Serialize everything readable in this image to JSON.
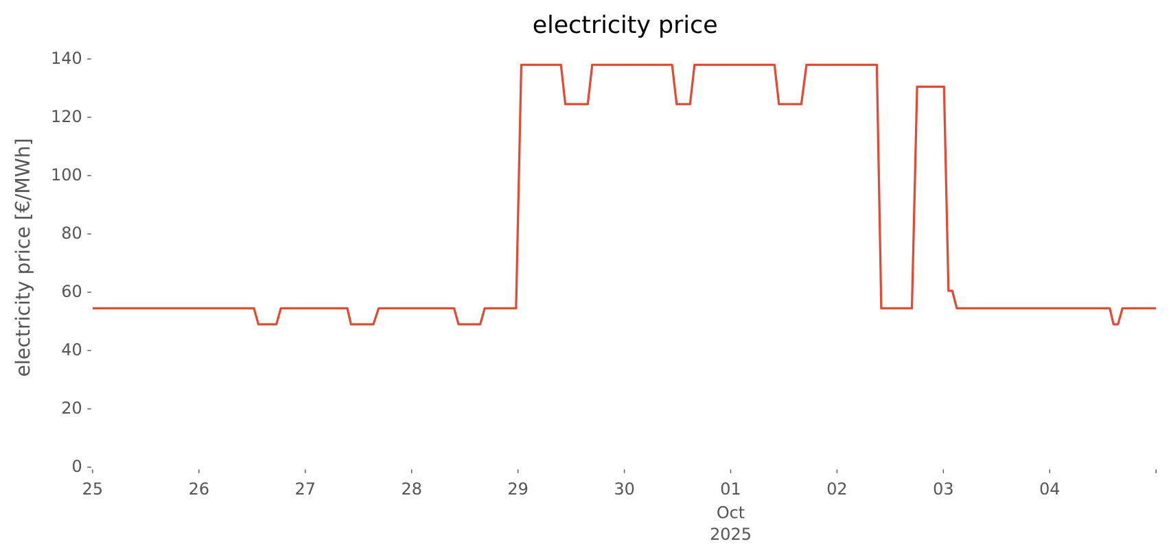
{
  "chart_data": {
    "type": "line",
    "title": "electricity price",
    "ylabel": "electricity price [€/MWh]",
    "x": [
      0,
      1.517,
      1.559,
      1.728,
      1.77,
      2.395,
      2.43,
      2.64,
      2.69,
      3.399,
      3.441,
      3.645,
      3.687,
      3.982,
      4.031,
      4.404,
      4.445,
      4.656,
      4.698,
      5.449,
      5.492,
      5.618,
      5.66,
      6.412,
      6.454,
      6.664,
      6.713,
      7.374,
      7.416,
      7.704,
      7.753,
      8.006,
      8.048,
      8.084,
      8.126,
      9.565,
      9.6,
      9.642,
      9.684,
      10
    ],
    "series": [
      {
        "name": "electricity price",
        "color": "#E24A33",
        "values": [
          54.5,
          54.5,
          49,
          49,
          54.5,
          54.5,
          49,
          49,
          54.5,
          54.5,
          49,
          49,
          54.5,
          54.5,
          138,
          138,
          124.5,
          124.5,
          138,
          138,
          124.5,
          124.5,
          138,
          138,
          124.5,
          124.5,
          138,
          138,
          54.5,
          54.5,
          130.5,
          130.5,
          60.5,
          60.5,
          54.5,
          54.5,
          49,
          49,
          54.5,
          54.5
        ]
      }
    ],
    "xlim": [
      0,
      10
    ],
    "xticks": [
      {
        "value": 0,
        "label": "25"
      },
      {
        "value": 1,
        "label": "26"
      },
      {
        "value": 2,
        "label": "27"
      },
      {
        "value": 3,
        "label": "28"
      },
      {
        "value": 4,
        "label": "29"
      },
      {
        "value": 5,
        "label": "30"
      },
      {
        "value": 6,
        "label": "01"
      },
      {
        "value": 7,
        "label": "02"
      },
      {
        "value": 8,
        "label": "03"
      },
      {
        "value": 9,
        "label": "04"
      },
      {
        "value": 10,
        "label": null
      }
    ],
    "x_month": "Oct",
    "x_year": "2025",
    "ylim": [
      0,
      140
    ],
    "yticks": [
      0,
      20,
      40,
      60,
      80,
      100,
      120,
      140
    ],
    "grid": false
  }
}
